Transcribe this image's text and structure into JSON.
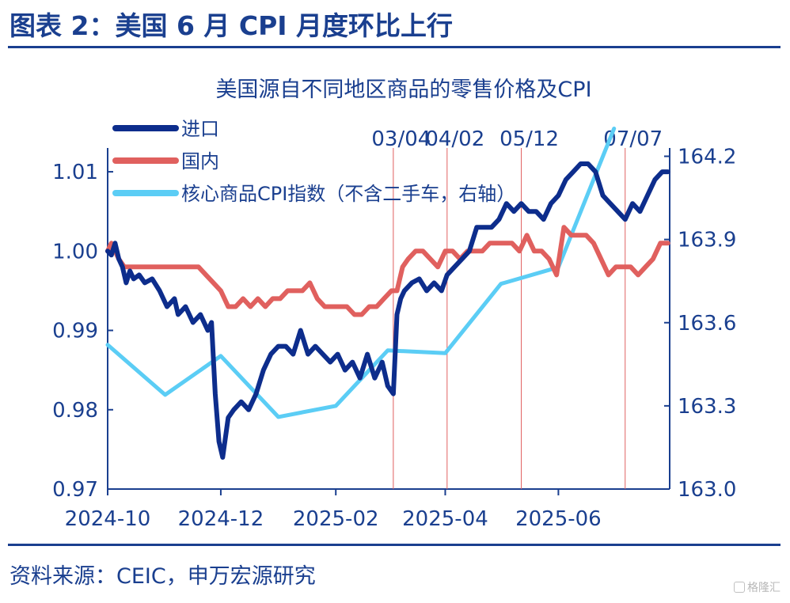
{
  "figure_title": "图表 2：美国 6 月 CPI 月度环比上行",
  "source_note": "资料来源：CEIC，申万宏源研究",
  "watermark": "格隆汇",
  "chart_data": {
    "type": "line",
    "title": "美国源自不同地区商品的零售价格及CPI",
    "left_axis": {
      "ticks": [
        "1.01",
        "1.00",
        "0.99",
        "0.98",
        "0.97"
      ],
      "ylim": [
        0.97,
        1.013
      ]
    },
    "right_axis": {
      "ticks": [
        "164.2",
        "163.9",
        "163.6",
        "163.3",
        "163.0"
      ],
      "ylim": [
        163.0,
        164.23
      ]
    },
    "x_ticks": [
      "2024-10",
      "2024-12",
      "2025-02",
      "2025-04",
      "2025-06"
    ],
    "x_range": [
      "2024-10-01",
      "2025-07-31"
    ],
    "grid": false,
    "legend_position": "top-left",
    "vlines": [
      {
        "date": "2025-03-04",
        "label": "03/04"
      },
      {
        "date": "2025-04-02",
        "label": "04/02"
      },
      {
        "date": "2025-05-12",
        "label": "05/12"
      },
      {
        "date": "2025-07-07",
        "label": "07/07"
      }
    ],
    "series": [
      {
        "name": "进口",
        "axis": "left",
        "color": "#0d2d8c",
        "x": [
          "2024-10-01",
          "2024-10-03",
          "2024-10-05",
          "2024-10-07",
          "2024-10-09",
          "2024-10-11",
          "2024-10-13",
          "2024-10-15",
          "2024-10-18",
          "2024-10-21",
          "2024-10-25",
          "2024-10-29",
          "2024-11-02",
          "2024-11-06",
          "2024-11-08",
          "2024-11-12",
          "2024-11-16",
          "2024-11-20",
          "2024-11-24",
          "2024-11-26",
          "2024-11-28",
          "2024-11-30",
          "2024-12-02",
          "2024-12-05",
          "2024-12-08",
          "2024-12-12",
          "2024-12-16",
          "2024-12-20",
          "2024-12-24",
          "2024-12-28",
          "2025-01-01",
          "2025-01-05",
          "2025-01-09",
          "2025-01-13",
          "2025-01-17",
          "2025-01-21",
          "2025-01-25",
          "2025-01-29",
          "2025-02-02",
          "2025-02-06",
          "2025-02-10",
          "2025-02-14",
          "2025-02-18",
          "2025-02-22",
          "2025-02-26",
          "2025-03-01",
          "2025-03-04",
          "2025-03-06",
          "2025-03-08",
          "2025-03-10",
          "2025-03-14",
          "2025-03-18",
          "2025-03-22",
          "2025-03-26",
          "2025-03-30",
          "2025-04-02",
          "2025-04-06",
          "2025-04-10",
          "2025-04-14",
          "2025-04-18",
          "2025-04-22",
          "2025-04-26",
          "2025-04-30",
          "2025-05-04",
          "2025-05-08",
          "2025-05-12",
          "2025-05-16",
          "2025-05-20",
          "2025-05-24",
          "2025-05-28",
          "2025-06-01",
          "2025-06-05",
          "2025-06-09",
          "2025-06-13",
          "2025-06-17",
          "2025-06-21",
          "2025-06-25",
          "2025-06-29",
          "2025-07-03",
          "2025-07-07",
          "2025-07-11",
          "2025-07-15",
          "2025-07-19",
          "2025-07-23",
          "2025-07-27",
          "2025-07-30"
        ],
        "y": [
          1.0,
          0.9995,
          1.001,
          0.999,
          0.998,
          0.996,
          0.9975,
          0.9965,
          0.997,
          0.996,
          0.9965,
          0.995,
          0.993,
          0.994,
          0.992,
          0.993,
          0.991,
          0.992,
          0.99,
          0.991,
          0.982,
          0.976,
          0.974,
          0.979,
          0.98,
          0.981,
          0.98,
          0.982,
          0.985,
          0.987,
          0.988,
          0.988,
          0.987,
          0.99,
          0.987,
          0.988,
          0.987,
          0.986,
          0.987,
          0.985,
          0.986,
          0.984,
          0.987,
          0.984,
          0.986,
          0.983,
          0.982,
          0.992,
          0.994,
          0.995,
          0.996,
          0.9965,
          0.995,
          0.996,
          0.995,
          0.997,
          0.998,
          0.999,
          1.0,
          1.003,
          1.003,
          1.003,
          1.004,
          1.006,
          1.005,
          1.006,
          1.005,
          1.005,
          1.004,
          1.006,
          1.007,
          1.009,
          1.01,
          1.011,
          1.011,
          1.01,
          1.007,
          1.006,
          1.005,
          1.004,
          1.006,
          1.005,
          1.007,
          1.009,
          1.01,
          1.01
        ]
      },
      {
        "name": "国内",
        "axis": "left",
        "color": "#e0605e",
        "x": [
          "2024-10-01",
          "2024-10-03",
          "2024-10-05",
          "2024-10-07",
          "2024-10-10",
          "2024-10-14",
          "2024-10-18",
          "2024-10-22",
          "2024-10-26",
          "2024-10-30",
          "2024-11-03",
          "2024-11-07",
          "2024-11-11",
          "2024-11-15",
          "2024-11-19",
          "2024-11-23",
          "2024-11-27",
          "2024-12-01",
          "2024-12-05",
          "2024-12-09",
          "2024-12-13",
          "2024-12-17",
          "2024-12-21",
          "2024-12-25",
          "2024-12-29",
          "2025-01-02",
          "2025-01-06",
          "2025-01-10",
          "2025-01-14",
          "2025-01-18",
          "2025-01-22",
          "2025-01-26",
          "2025-01-30",
          "2025-02-03",
          "2025-02-07",
          "2025-02-11",
          "2025-02-15",
          "2025-02-19",
          "2025-02-23",
          "2025-02-27",
          "2025-03-03",
          "2025-03-06",
          "2025-03-09",
          "2025-03-12",
          "2025-03-16",
          "2025-03-20",
          "2025-03-24",
          "2025-03-28",
          "2025-04-01",
          "2025-04-05",
          "2025-04-09",
          "2025-04-13",
          "2025-04-17",
          "2025-04-21",
          "2025-04-25",
          "2025-04-29",
          "2025-05-03",
          "2025-05-07",
          "2025-05-11",
          "2025-05-15",
          "2025-05-19",
          "2025-05-23",
          "2025-05-27",
          "2025-05-31",
          "2025-06-04",
          "2025-06-08",
          "2025-06-12",
          "2025-06-16",
          "2025-06-20",
          "2025-06-24",
          "2025-06-28",
          "2025-07-02",
          "2025-07-06",
          "2025-07-10",
          "2025-07-14",
          "2025-07-18",
          "2025-07-22",
          "2025-07-26",
          "2025-07-30"
        ],
        "y": [
          1.0,
          1.001,
          1.0,
          0.999,
          0.998,
          0.998,
          0.998,
          0.998,
          0.998,
          0.998,
          0.998,
          0.998,
          0.998,
          0.998,
          0.998,
          0.997,
          0.996,
          0.995,
          0.993,
          0.993,
          0.994,
          0.993,
          0.994,
          0.993,
          0.994,
          0.994,
          0.995,
          0.995,
          0.995,
          0.996,
          0.994,
          0.993,
          0.993,
          0.993,
          0.993,
          0.992,
          0.992,
          0.993,
          0.993,
          0.994,
          0.995,
          0.995,
          0.998,
          0.999,
          1.0,
          1.0,
          0.999,
          0.998,
          1.0,
          1.0,
          0.999,
          1.0,
          1.0,
          1.0,
          1.001,
          1.001,
          1.001,
          1.001,
          1.0,
          1.002,
          1.0,
          1.0,
          0.999,
          0.997,
          1.003,
          1.002,
          1.002,
          1.002,
          1.001,
          0.999,
          0.997,
          0.998,
          0.998,
          0.998,
          0.997,
          0.998,
          0.999,
          1.001,
          1.001
        ]
      },
      {
        "name": "核心商品CPI指数（不含二手车，右轴）",
        "axis": "right",
        "color": "#5bcdf5",
        "x": [
          "2024-10-01",
          "2024-11-01",
          "2024-12-01",
          "2025-01-01",
          "2025-02-01",
          "2025-03-01",
          "2025-04-01",
          "2025-05-01",
          "2025-06-01",
          "2025-07-01"
        ],
        "y": [
          163.52,
          163.34,
          163.48,
          163.26,
          163.3,
          163.5,
          163.49,
          163.74,
          163.8,
          164.3
        ]
      }
    ]
  }
}
